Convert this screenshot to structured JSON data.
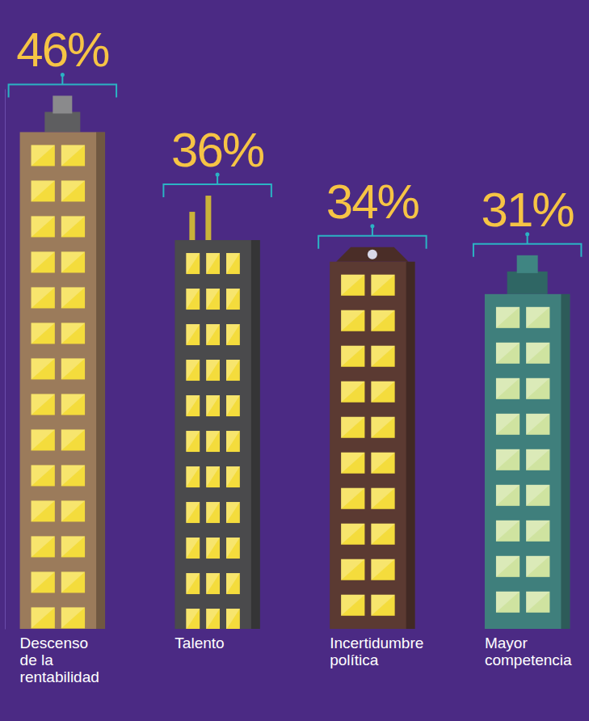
{
  "chart_data": {
    "type": "bar",
    "categories": [
      "Descenso de la rentabilidad",
      "Talento",
      "Incertidumbre política",
      "Mayor competencia"
    ],
    "values": [
      46,
      36,
      34,
      31
    ],
    "value_labels": [
      "46%",
      "36%",
      "34%",
      "31%"
    ],
    "colors": [
      "#9b7b5b",
      "#4a4a4c",
      "#5b3a32",
      "#3f7f7c"
    ],
    "ylim": [
      0,
      50
    ],
    "data_labels": true,
    "tick_labels": false
  }
}
